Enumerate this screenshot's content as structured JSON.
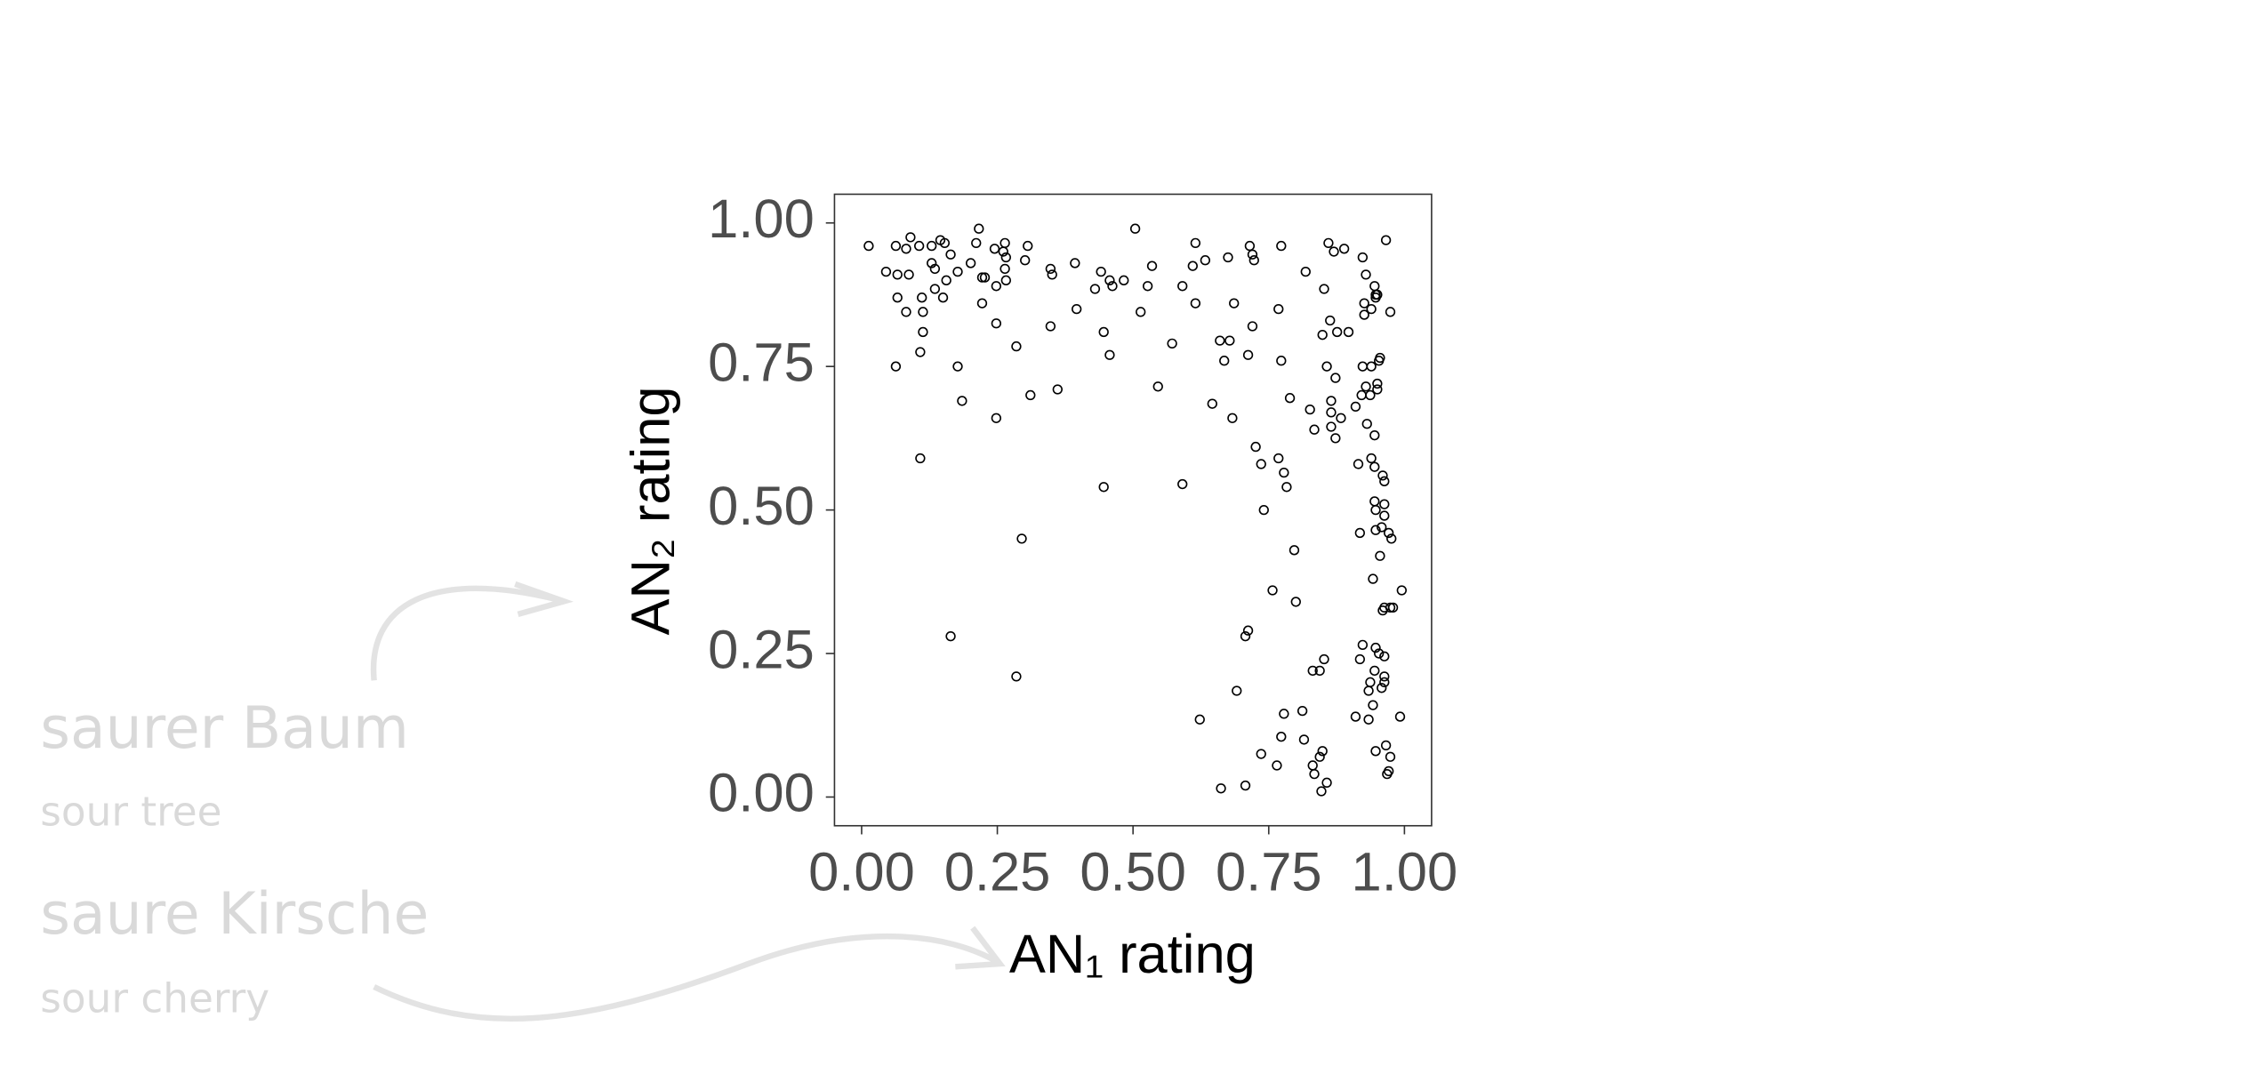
{
  "chart_data": {
    "type": "scatter",
    "x_label": "AN₁ rating",
    "y_label": "AN₂ rating",
    "annotations": [
      "saurer Baum",
      "sour tree",
      "saure Kirsche",
      "sour cherry"
    ],
    "xlim": [
      -0.05,
      1.05
    ],
    "ylim": [
      -0.05,
      1.05
    ],
    "xticks": [
      {
        "value": 0,
        "label": "0.00"
      },
      {
        "value": 0.25,
        "label": "0.25"
      },
      {
        "value": 0.5,
        "label": "0.50"
      },
      {
        "value": 0.75,
        "label": "0.75"
      },
      {
        "value": 1,
        "label": "1.00"
      }
    ],
    "yticks": [
      {
        "value": 0,
        "label": "0.00"
      },
      {
        "value": 0.25,
        "label": "0.25"
      },
      {
        "value": 0.5,
        "label": "0.50"
      },
      {
        "value": 0.75,
        "label": "0.75"
      },
      {
        "value": 1,
        "label": "1.00"
      }
    ],
    "color": "#000000",
    "x": [
      0.013,
      0.045,
      0.063,
      0.066,
      0.066,
      0.063,
      0.082,
      0.087,
      0.09,
      0.082,
      0.106,
      0.111,
      0.113,
      0.113,
      0.108,
      0.108,
      0.129,
      0.135,
      0.129,
      0.145,
      0.153,
      0.15,
      0.135,
      0.156,
      0.164,
      0.177,
      0.177,
      0.185,
      0.164,
      0.201,
      0.211,
      0.216,
      0.222,
      0.227,
      0.222,
      0.245,
      0.248,
      0.248,
      0.248,
      0.261,
      0.264,
      0.264,
      0.266,
      0.266,
      0.285,
      0.301,
      0.306,
      0.295,
      0.285,
      0.311,
      0.348,
      0.351,
      0.348,
      0.361,
      0.393,
      0.396,
      0.43,
      0.441,
      0.446,
      0.457,
      0.446,
      0.457,
      0.462,
      0.483,
      0.504,
      0.514,
      0.527,
      0.535,
      0.546,
      0.572,
      0.591,
      0.591,
      0.61,
      0.615,
      0.615,
      0.633,
      0.646,
      0.623,
      0.66,
      0.662,
      0.668,
      0.678,
      0.675,
      0.686,
      0.683,
      0.691,
      0.707,
      0.707,
      0.712,
      0.712,
      0.715,
      0.72,
      0.723,
      0.72,
      0.726,
      0.736,
      0.741,
      0.736,
      0.757,
      0.765,
      0.768,
      0.773,
      0.773,
      0.773,
      0.768,
      0.778,
      0.783,
      0.778,
      0.789,
      0.797,
      0.8,
      0.812,
      0.815,
      0.818,
      0.826,
      0.831,
      0.831,
      0.834,
      0.834,
      0.844,
      0.844,
      0.849,
      0.852,
      0.847,
      0.849,
      0.852,
      0.857,
      0.857,
      0.86,
      0.863,
      0.865,
      0.865,
      0.865,
      0.87,
      0.873,
      0.873,
      0.876,
      0.883,
      0.889,
      0.897,
      0.91,
      0.91,
      0.915,
      0.918,
      0.918,
      0.921,
      0.923,
      0.923,
      0.923,
      0.926,
      0.929,
      0.926,
      0.929,
      0.931,
      0.934,
      0.934,
      0.937,
      0.937,
      0.939,
      0.939,
      0.939,
      0.942,
      0.942,
      0.945,
      0.945,
      0.945,
      0.945,
      0.945,
      0.947,
      0.947,
      0.947,
      0.947,
      0.947,
      0.947,
      0.95,
      0.95,
      0.95,
      0.953,
      0.953,
      0.955,
      0.955,
      0.958,
      0.958,
      0.96,
      0.96,
      0.963,
      0.963,
      0.963,
      0.963,
      0.963,
      0.963,
      0.963,
      0.966,
      0.966,
      0.968,
      0.971,
      0.971,
      0.974,
      0.974,
      0.974,
      0.976,
      0.979,
      0.992,
      0.995
    ],
    "y": [
      0.96,
      0.915,
      0.96,
      0.91,
      0.87,
      0.75,
      0.845,
      0.91,
      0.975,
      0.955,
      0.96,
      0.87,
      0.845,
      0.81,
      0.775,
      0.59,
      0.93,
      0.92,
      0.96,
      0.97,
      0.965,
      0.87,
      0.885,
      0.9,
      0.945,
      0.915,
      0.75,
      0.69,
      0.28,
      0.93,
      0.965,
      0.99,
      0.905,
      0.905,
      0.86,
      0.955,
      0.89,
      0.825,
      0.66,
      0.95,
      0.965,
      0.92,
      0.9,
      0.94,
      0.785,
      0.935,
      0.96,
      0.45,
      0.21,
      0.7,
      0.92,
      0.91,
      0.82,
      0.71,
      0.93,
      0.85,
      0.885,
      0.915,
      0.81,
      0.77,
      0.54,
      0.9,
      0.89,
      0.9,
      0.99,
      0.845,
      0.89,
      0.925,
      0.715,
      0.79,
      0.89,
      0.545,
      0.925,
      0.86,
      0.965,
      0.935,
      0.685,
      0.135,
      0.795,
      0.015,
      0.76,
      0.795,
      0.94,
      0.86,
      0.66,
      0.185,
      0.02,
      0.28,
      0.29,
      0.77,
      0.96,
      0.945,
      0.935,
      0.82,
      0.61,
      0.58,
      0.5,
      0.075,
      0.36,
      0.055,
      0.85,
      0.96,
      0.76,
      0.105,
      0.59,
      0.565,
      0.54,
      0.145,
      0.695,
      0.43,
      0.34,
      0.15,
      0.1,
      0.915,
      0.675,
      0.055,
      0.22,
      0.64,
      0.04,
      0.22,
      0.07,
      0.805,
      0.24,
      0.01,
      0.08,
      0.885,
      0.75,
      0.025,
      0.965,
      0.83,
      0.69,
      0.67,
      0.645,
      0.95,
      0.625,
      0.73,
      0.81,
      0.66,
      0.955,
      0.81,
      0.68,
      0.14,
      0.58,
      0.46,
      0.24,
      0.7,
      0.265,
      0.94,
      0.75,
      0.84,
      0.91,
      0.86,
      0.715,
      0.65,
      0.135,
      0.185,
      0.2,
      0.7,
      0.85,
      0.75,
      0.59,
      0.38,
      0.16,
      0.89,
      0.22,
      0.63,
      0.575,
      0.515,
      0.875,
      0.87,
      0.5,
      0.465,
      0.26,
      0.08,
      0.72,
      0.71,
      0.875,
      0.76,
      0.25,
      0.42,
      0.765,
      0.19,
      0.47,
      0.325,
      0.56,
      0.55,
      0.51,
      0.49,
      0.33,
      0.245,
      0.21,
      0.2,
      0.97,
      0.09,
      0.04,
      0.045,
      0.46,
      0.845,
      0.33,
      0.07,
      0.45,
      0.33,
      0.14,
      0.36
    ]
  }
}
